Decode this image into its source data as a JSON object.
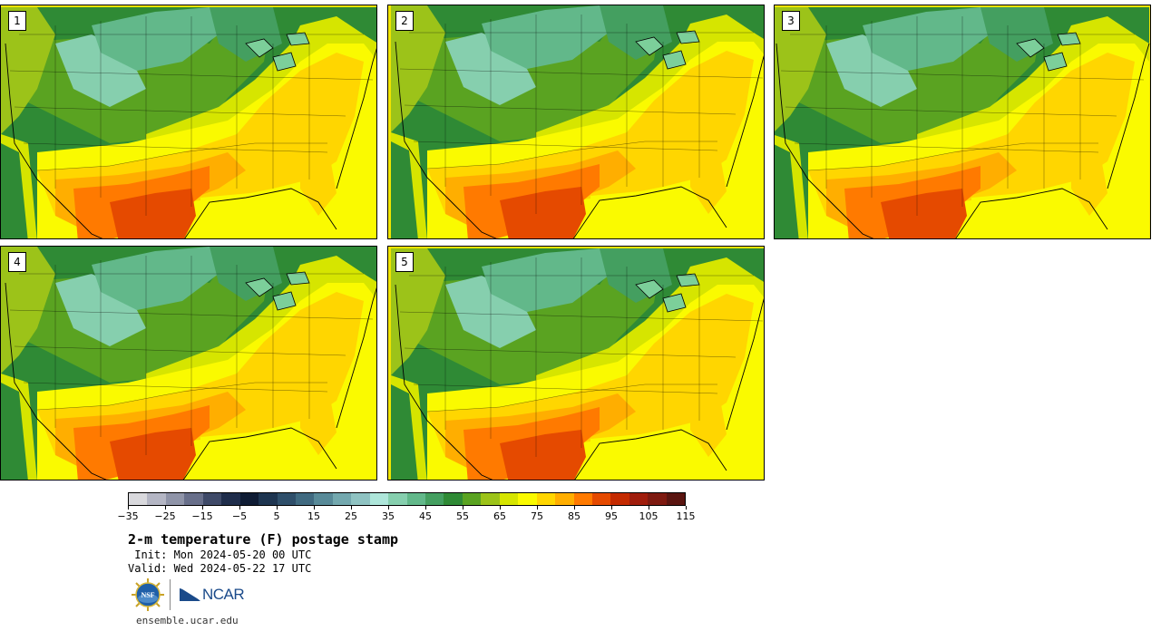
{
  "panels": [
    {
      "label": "1"
    },
    {
      "label": "2"
    },
    {
      "label": "3"
    },
    {
      "label": "4"
    },
    {
      "label": "5"
    }
  ],
  "colorbar": {
    "colors": [
      "#d9d9dd",
      "#b4b6c4",
      "#8f94a8",
      "#686f8a",
      "#3f4a68",
      "#1f2d4b",
      "#0f1c34",
      "#1e3550",
      "#2f4f6a",
      "#406a80",
      "#588a98",
      "#73a8ae",
      "#8fc3c2",
      "#aee6da",
      "#86cfae",
      "#62b88a",
      "#449f60",
      "#2f8a35",
      "#5aa321",
      "#9cc319",
      "#d6e500",
      "#fafa00",
      "#ffd600",
      "#ffae00",
      "#ff7a00",
      "#e54a00",
      "#c42a00",
      "#a01d0c",
      "#7e1a10",
      "#5a1510"
    ],
    "tick_labels": [
      "−35",
      "−25",
      "−15",
      "−5",
      "5",
      "15",
      "25",
      "35",
      "45",
      "55",
      "65",
      "75",
      "85",
      "95",
      "105",
      "115"
    ]
  },
  "title": "2-m temperature (F) postage stamp",
  "init_text": " Init: Mon 2024-05-20 00 UTC",
  "valid_text": "Valid: Wed 2024-05-22 17 UTC",
  "logos": {
    "nsf_text": "NSF",
    "ncar_text": "NCAR"
  },
  "website": "ensemble.ucar.edu"
}
